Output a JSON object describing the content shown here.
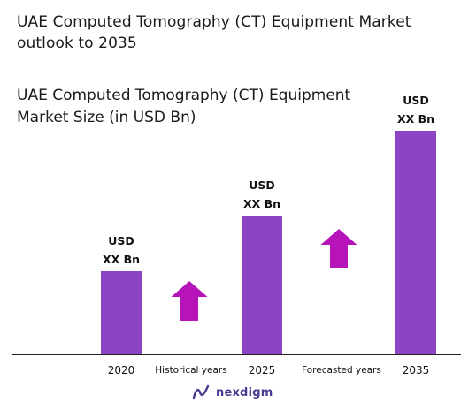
{
  "chart_data": {
    "type": "bar",
    "title": "UAE Computed Tomography (CT) Equipment Market outlook to 2035",
    "subtitle": "UAE Computed Tomography (CT) Equipment Market Size (in USD Bn)",
    "categories": [
      "2020",
      "2025",
      "2035"
    ],
    "values": [
      0.31,
      0.52,
      0.84
    ],
    "value_labels": [
      [
        "USD",
        "XX Bn"
      ],
      [
        "USD",
        "XX Bn"
      ],
      [
        "USD",
        "XX Bn"
      ]
    ],
    "ylim": [
      0,
      1.0
    ],
    "grid": false,
    "bar_color": "#8b44c3",
    "period_labels": [
      "Historical years",
      "Forecasted years"
    ],
    "arrow_color": "#b613b9"
  },
  "brand": {
    "name": "nexdigm",
    "color": "#4b3b8f"
  }
}
